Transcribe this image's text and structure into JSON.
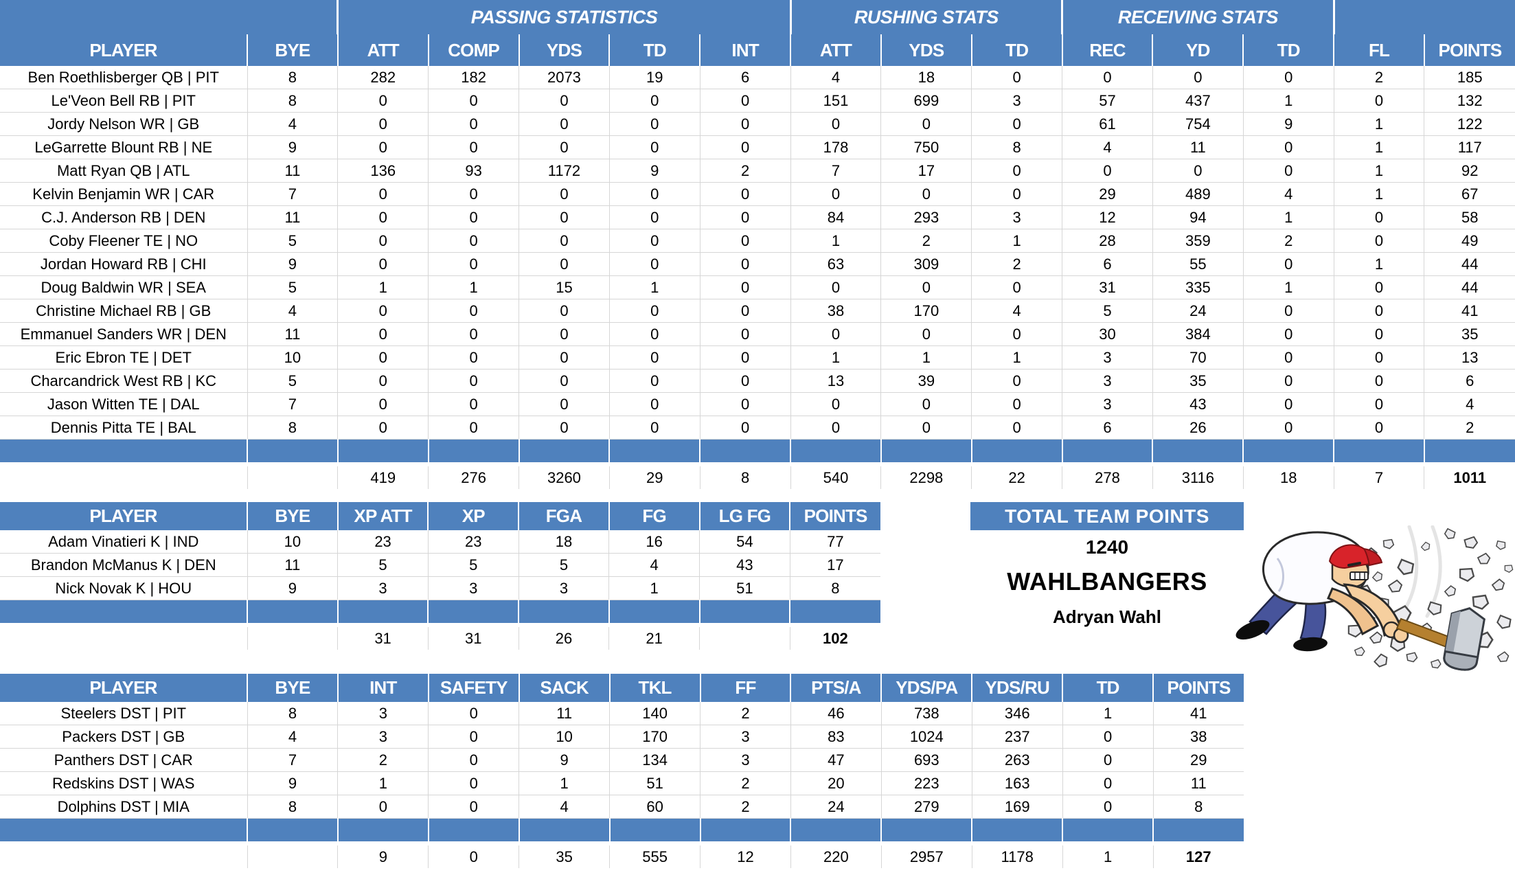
{
  "colors": {
    "header_blue": "#4f81bd",
    "grid_line": "#d6d6d6",
    "text": "#000000",
    "background": "#ffffff"
  },
  "offense_table": {
    "group_headers": [
      {
        "label": "",
        "span": 2
      },
      {
        "label": "PASSING STATISTICS",
        "span": 5
      },
      {
        "label": "RUSHING STATS",
        "span": 3
      },
      {
        "label": "RECEIVING STATS",
        "span": 3
      },
      {
        "label": "",
        "span": 2
      }
    ],
    "columns": [
      "PLAYER",
      "BYE",
      "ATT",
      "COMP",
      "YDS",
      "TD",
      "INT",
      "ATT",
      "YDS",
      "TD",
      "REC",
      "YD",
      "TD",
      "FL",
      "POINTS"
    ],
    "rows": [
      [
        "Ben Roethlisberger QB | PIT",
        "8",
        "282",
        "182",
        "2073",
        "19",
        "6",
        "4",
        "18",
        "0",
        "0",
        "0",
        "0",
        "2",
        "185"
      ],
      [
        "Le'Veon Bell RB | PIT",
        "8",
        "0",
        "0",
        "0",
        "0",
        "0",
        "151",
        "699",
        "3",
        "57",
        "437",
        "1",
        "0",
        "132"
      ],
      [
        "Jordy Nelson WR | GB",
        "4",
        "0",
        "0",
        "0",
        "0",
        "0",
        "0",
        "0",
        "0",
        "61",
        "754",
        "9",
        "1",
        "122"
      ],
      [
        "LeGarrette Blount RB | NE",
        "9",
        "0",
        "0",
        "0",
        "0",
        "0",
        "178",
        "750",
        "8",
        "4",
        "11",
        "0",
        "1",
        "117"
      ],
      [
        "Matt Ryan QB | ATL",
        "11",
        "136",
        "93",
        "1172",
        "9",
        "2",
        "7",
        "17",
        "0",
        "0",
        "0",
        "0",
        "1",
        "92"
      ],
      [
        "Kelvin Benjamin WR | CAR",
        "7",
        "0",
        "0",
        "0",
        "0",
        "0",
        "0",
        "0",
        "0",
        "29",
        "489",
        "4",
        "1",
        "67"
      ],
      [
        "C.J. Anderson RB | DEN",
        "11",
        "0",
        "0",
        "0",
        "0",
        "0",
        "84",
        "293",
        "3",
        "12",
        "94",
        "1",
        "0",
        "58"
      ],
      [
        "Coby Fleener TE | NO",
        "5",
        "0",
        "0",
        "0",
        "0",
        "0",
        "1",
        "2",
        "1",
        "28",
        "359",
        "2",
        "0",
        "49"
      ],
      [
        "Jordan Howard RB | CHI",
        "9",
        "0",
        "0",
        "0",
        "0",
        "0",
        "63",
        "309",
        "2",
        "6",
        "55",
        "0",
        "1",
        "44"
      ],
      [
        "Doug Baldwin WR | SEA",
        "5",
        "1",
        "1",
        "15",
        "1",
        "0",
        "0",
        "0",
        "0",
        "31",
        "335",
        "1",
        "0",
        "44"
      ],
      [
        "Christine Michael RB | GB",
        "4",
        "0",
        "0",
        "0",
        "0",
        "0",
        "38",
        "170",
        "4",
        "5",
        "24",
        "0",
        "0",
        "41"
      ],
      [
        "Emmanuel Sanders WR | DEN",
        "11",
        "0",
        "0",
        "0",
        "0",
        "0",
        "0",
        "0",
        "0",
        "30",
        "384",
        "0",
        "0",
        "35"
      ],
      [
        "Eric Ebron TE | DET",
        "10",
        "0",
        "0",
        "0",
        "0",
        "0",
        "1",
        "1",
        "1",
        "3",
        "70",
        "0",
        "0",
        "13"
      ],
      [
        "Charcandrick West RB | KC",
        "5",
        "0",
        "0",
        "0",
        "0",
        "0",
        "13",
        "39",
        "0",
        "3",
        "35",
        "0",
        "0",
        "6"
      ],
      [
        "Jason Witten TE | DAL",
        "7",
        "0",
        "0",
        "0",
        "0",
        "0",
        "0",
        "0",
        "0",
        "3",
        "43",
        "0",
        "0",
        "4"
      ],
      [
        "Dennis Pitta TE | BAL",
        "8",
        "0",
        "0",
        "0",
        "0",
        "0",
        "0",
        "0",
        "0",
        "6",
        "26",
        "0",
        "0",
        "2"
      ]
    ],
    "totals": [
      "",
      "",
      "419",
      "276",
      "3260",
      "29",
      "8",
      "540",
      "2298",
      "22",
      "278",
      "3116",
      "18",
      "7",
      "1011"
    ]
  },
  "kicker_table": {
    "columns": [
      "PLAYER",
      "BYE",
      "XP ATT",
      "XP",
      "FGA",
      "FG",
      "LG FG",
      "POINTS"
    ],
    "rows": [
      [
        "Adam Vinatieri K | IND",
        "10",
        "23",
        "23",
        "18",
        "16",
        "54",
        "77"
      ],
      [
        "Brandon McManus K | DEN",
        "11",
        "5",
        "5",
        "5",
        "4",
        "43",
        "17"
      ],
      [
        "Nick Novak K | HOU",
        "9",
        "3",
        "3",
        "3",
        "1",
        "51",
        "8"
      ]
    ],
    "totals": [
      "",
      "",
      "31",
      "31",
      "26",
      "21",
      "",
      "102"
    ]
  },
  "dst_table": {
    "columns": [
      "PLAYER",
      "BYE",
      "INT",
      "SAFETY",
      "SACK",
      "TKL",
      "FF",
      "PTS/A",
      "YDS/PA",
      "YDS/RU",
      "TD",
      "POINTS"
    ],
    "rows": [
      [
        "Steelers DST | PIT",
        "8",
        "3",
        "0",
        "11",
        "140",
        "2",
        "46",
        "738",
        "346",
        "1",
        "41"
      ],
      [
        "Packers DST | GB",
        "4",
        "3",
        "0",
        "10",
        "170",
        "3",
        "83",
        "1024",
        "237",
        "0",
        "38"
      ],
      [
        "Panthers DST | CAR",
        "7",
        "2",
        "0",
        "9",
        "134",
        "3",
        "47",
        "693",
        "263",
        "0",
        "29"
      ],
      [
        "Redskins DST | WAS",
        "9",
        "1",
        "0",
        "1",
        "51",
        "2",
        "20",
        "223",
        "163",
        "0",
        "11"
      ],
      [
        "Dolphins DST | MIA",
        "8",
        "0",
        "0",
        "4",
        "60",
        "2",
        "24",
        "279",
        "169",
        "0",
        "8"
      ]
    ],
    "totals": [
      "",
      "",
      "9",
      "0",
      "35",
      "555",
      "12",
      "220",
      "2957",
      "1178",
      "1",
      "127"
    ]
  },
  "team_panel": {
    "header": "TOTAL TEAM POINTS",
    "points": "1240",
    "team_name": "WAHLBANGERS",
    "owner": "Adryan Wahl"
  },
  "icons": {
    "illustration": "hammer-smash-cartoon"
  }
}
